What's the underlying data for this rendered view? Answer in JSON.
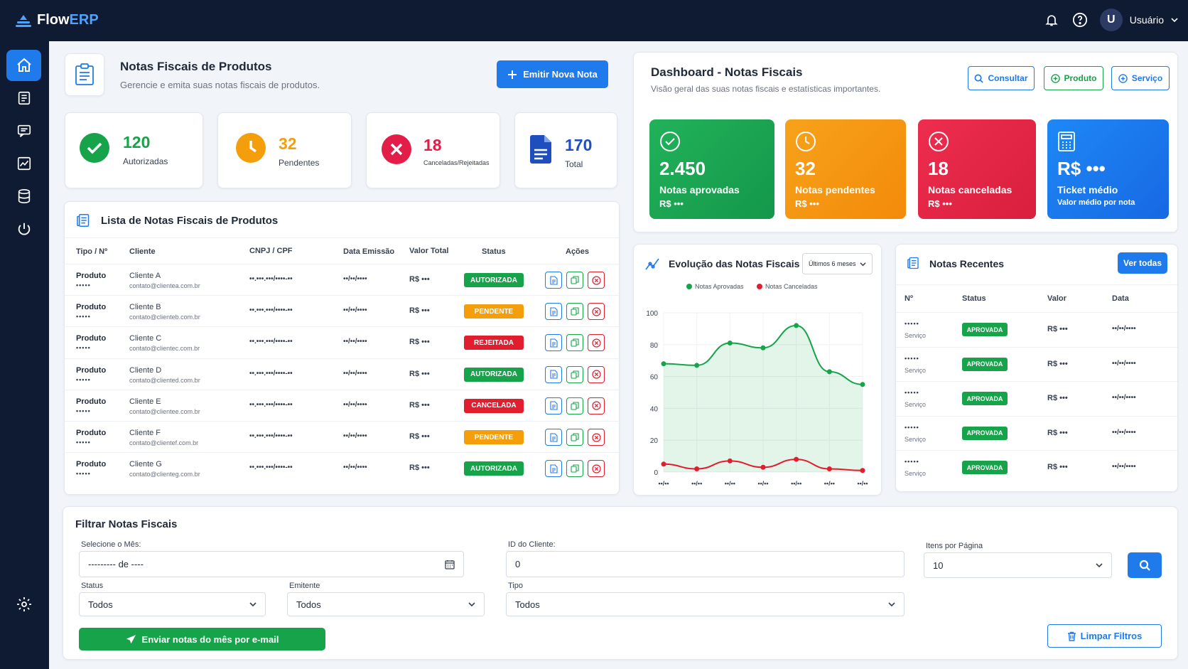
{
  "app": {
    "logo_main": "Flow",
    "logo_accent": "ERP",
    "user_initial": "U",
    "user_name": "Usuário"
  },
  "header": {
    "title": "Notas Fiscais de Produtos",
    "subtitle": "Gerencie e emita suas notas fiscais de produtos.",
    "emit_button": "Emitir Nova Nota"
  },
  "stats": [
    {
      "value": "120",
      "label": "Autorizadas",
      "color": "#16a34a"
    },
    {
      "value": "32",
      "label": "Pendentes",
      "color": "#f59e0b"
    },
    {
      "value": "18",
      "label": "Canceladas/Rejeitadas",
      "color": "#e11d48"
    },
    {
      "value": "170",
      "label": "Total",
      "color": "#1f4fbf"
    }
  ],
  "list": {
    "title": "Lista de Notas Fiscais de Produtos",
    "columns": [
      "Tipo / Nº",
      "Cliente",
      "CNPJ / CPF",
      "Data Emissão",
      "Valor Total",
      "Status",
      "Ações"
    ],
    "rows": [
      {
        "tipo": "Produto",
        "num": "•••••",
        "cliente": "Cliente A",
        "email": "contato@clientea.com.br",
        "doc": "••.•••.•••/••••-••",
        "data": "••/••/••••",
        "valor": "R$ •••",
        "status": "AUTORIZADA",
        "status_color": "#16a34a"
      },
      {
        "tipo": "Produto",
        "num": "•••••",
        "cliente": "Cliente B",
        "email": "contato@clienteb.com.br",
        "doc": "••.•••.•••/••••-••",
        "data": "••/••/••••",
        "valor": "R$ •••",
        "status": "PENDENTE",
        "status_color": "#f59e0b"
      },
      {
        "tipo": "Produto",
        "num": "•••••",
        "cliente": "Cliente C",
        "email": "contato@clientec.com.br",
        "doc": "••.•••.•••/••••-••",
        "data": "••/••/••••",
        "valor": "R$ •••",
        "status": "REJEITADA",
        "status_color": "#e11d2e"
      },
      {
        "tipo": "Produto",
        "num": "•••••",
        "cliente": "Cliente D",
        "email": "contato@cliented.com.br",
        "doc": "••.•••.•••/••••-••",
        "data": "••/••/••••",
        "valor": "R$ •••",
        "status": "AUTORIZADA",
        "status_color": "#16a34a"
      },
      {
        "tipo": "Produto",
        "num": "•••••",
        "cliente": "Cliente E",
        "email": "contato@clientee.com.br",
        "doc": "••.•••.•••/••••-••",
        "data": "••/••/••••",
        "valor": "R$ •••",
        "status": "CANCELADA",
        "status_color": "#e11d2e"
      },
      {
        "tipo": "Produto",
        "num": "•••••",
        "cliente": "Cliente F",
        "email": "contato@clientef.com.br",
        "doc": "••.•••.•••/••••-••",
        "data": "••/••/••••",
        "valor": "R$ •••",
        "status": "PENDENTE",
        "status_color": "#f59e0b"
      },
      {
        "tipo": "Produto",
        "num": "•••••",
        "cliente": "Cliente G",
        "email": "contato@clienteg.com.br",
        "doc": "••.•••.•••/••••-••",
        "data": "••/••/••••",
        "valor": "R$ •••",
        "status": "AUTORIZADA",
        "status_color": "#16a34a"
      }
    ]
  },
  "dashboard": {
    "title": "Dashboard - Notas Fiscais",
    "subtitle": "Visão geral das suas notas fiscais e estatísticas importantes.",
    "buttons": [
      "Consultar",
      "Produto",
      "Serviço"
    ],
    "cards": [
      {
        "value": "2.450",
        "label": "Notas aprovadas",
        "sub": "R$ •••"
      },
      {
        "value": "32",
        "label": "Notas pendentes",
        "sub": "R$ •••"
      },
      {
        "value": "18",
        "label": "Notas canceladas",
        "sub": "R$ •••"
      },
      {
        "value": "R$ •••",
        "label": "Ticket médio",
        "sub": "Valor médio por nota"
      }
    ]
  },
  "chart_section": {
    "title": "Evolução das Notas Fiscais",
    "period_select": "Últimos 6 meses"
  },
  "chart_data": {
    "type": "area",
    "title": "Evolução das Notas Fiscais",
    "x": [
      "••/••",
      "••/••",
      "••/••",
      "••/••",
      "••/••",
      "••/••",
      "••/••"
    ],
    "y_ticks": [
      "0",
      "20",
      "40",
      "60",
      "80",
      "100"
    ],
    "ylim": [
      0,
      100
    ],
    "grid": true,
    "legend": "top",
    "series": [
      {
        "name": "Notas Aprovadas",
        "color": "#16a34a",
        "values": [
          68,
          67,
          81,
          78,
          92,
          63,
          55
        ]
      },
      {
        "name": "Notas Canceladas",
        "color": "#e11d2e",
        "values": [
          5,
          2,
          7,
          3,
          8,
          2,
          1
        ]
      }
    ]
  },
  "recent": {
    "title": "Notas Recentes",
    "view_all": "Ver todas",
    "columns": [
      "Nº",
      "Status",
      "Valor",
      "Data"
    ],
    "rows": [
      {
        "num": "•••••",
        "tipo": "Serviço",
        "status": "APROVADA",
        "valor": "R$ •••",
        "data": "••/••/••••"
      },
      {
        "num": "•••••",
        "tipo": "Serviço",
        "status": "APROVADA",
        "valor": "R$ •••",
        "data": "••/••/••••"
      },
      {
        "num": "•••••",
        "tipo": "Serviço",
        "status": "APROVADA",
        "valor": "R$ •••",
        "data": "••/••/••••"
      },
      {
        "num": "•••••",
        "tipo": "Serviço",
        "status": "APROVADA",
        "valor": "R$ •••",
        "data": "••/••/••••"
      },
      {
        "num": "•••••",
        "tipo": "Serviço",
        "status": "APROVADA",
        "valor": "R$ •••",
        "data": "••/••/••••"
      }
    ]
  },
  "filter": {
    "title": "Filtrar Notas Fiscais",
    "month_label": "Selecione o Mês:",
    "month_value": "--------- de ----",
    "client_label": "ID do Cliente:",
    "client_value": "0",
    "items_label": "Itens por Página",
    "items_value": "10",
    "status_label": "Status",
    "status_value": "Todos",
    "emitter_label": "Emitente",
    "emitter_value": "Todos",
    "type_label": "Tipo",
    "type_value": "Todos",
    "send_button": "Enviar notas do mês por e-mail",
    "clear_button": "Limpar Filtros"
  }
}
